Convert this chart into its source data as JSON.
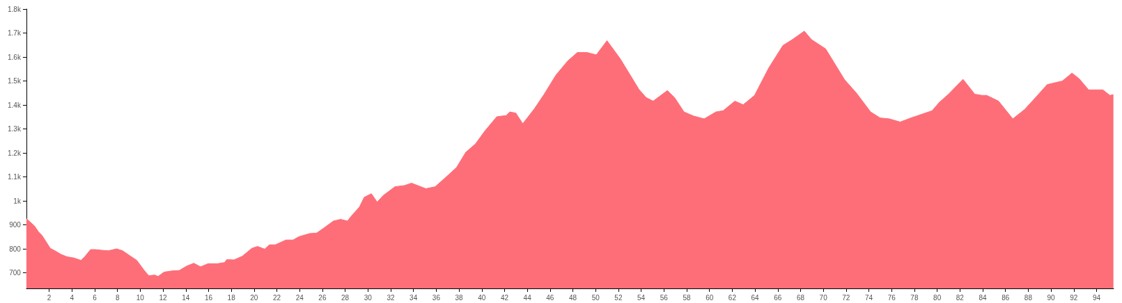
{
  "chart_data": {
    "type": "area",
    "color": "#fe6e78",
    "x": [
      0,
      0.23,
      0.7,
      1.06,
      1.37,
      2.1,
      2.5,
      3.04,
      3.56,
      4.18,
      4.8,
      5.12,
      5.64,
      6.05,
      6.68,
      7.2,
      7.93,
      8.45,
      9.07,
      9.7,
      10.3,
      10.74,
      11.26,
      11.57,
      12.09,
      12.8,
      13.44,
      14.07,
      14.7,
      15.3,
      15.94,
      16.77,
      17.4,
      17.6,
      18.23,
      18.96,
      19.8,
      20.3,
      20.93,
      21.35,
      21.87,
      22.8,
      23.43,
      23.95,
      24.9,
      25.5,
      26.1,
      26.97,
      27.6,
      28.2,
      28.53,
      29.26,
      29.67,
      30.3,
      30.81,
      31.33,
      32.37,
      33.2,
      33.83,
      35.08,
      35.9,
      36.74,
      37.78,
      38.6,
      39.45,
      40.28,
      41.32,
      42.15,
      42.47,
      42.99,
      43.6,
      44.65,
      45.48,
      46.52,
      47.56,
      48.4,
      49.23,
      50.06,
      51,
      52.14,
      52.97,
      53.8,
      54.43,
      55.05,
      56.3,
      56.93,
      57.76,
      58.6,
      59.53,
      60.57,
      61.2,
      62.23,
      62.96,
      63.96,
      65.2,
      66.45,
      67.29,
      68.33,
      68.95,
      70.2,
      71.87,
      72.9,
      74.15,
      74.99,
      75.8,
      76.75,
      77.7,
      79.56,
      80.19,
      81,
      82.27,
      83.3,
      83.93,
      84.35,
      85.39,
      86.64,
      87.68,
      88.72,
      89.66,
      91,
      91.84,
      92.46,
      93.3,
      94.55,
      95.17,
      95.48
    ],
    "values": [
      926,
      916,
      896,
      871,
      856,
      802,
      792,
      777,
      767,
      762,
      752,
      767,
      797,
      797,
      794,
      792,
      800,
      792,
      772,
      752,
      713,
      688,
      691,
      685,
      703,
      708,
      710,
      728,
      740,
      725,
      738,
      738,
      743,
      755,
      754,
      769,
      802,
      810,
      799,
      817,
      817,
      837,
      837,
      851,
      864,
      866,
      886,
      916,
      923,
      916,
      936,
      975,
      1015,
      1030,
      995,
      1022,
      1059,
      1064,
      1074,
      1051,
      1059,
      1094,
      1139,
      1203,
      1238,
      1292,
      1351,
      1356,
      1371,
      1366,
      1322,
      1386,
      1445,
      1525,
      1584,
      1619,
      1619,
      1609,
      1668,
      1594,
      1530,
      1465,
      1431,
      1416,
      1460,
      1431,
      1371,
      1354,
      1342,
      1371,
      1376,
      1416,
      1401,
      1440,
      1554,
      1648,
      1673,
      1708,
      1673,
      1634,
      1505,
      1450,
      1371,
      1346,
      1342,
      1329,
      1346,
      1376,
      1411,
      1445,
      1507,
      1445,
      1440,
      1440,
      1416,
      1342,
      1381,
      1435,
      1485,
      1500,
      1533,
      1510,
      1463,
      1463,
      1440,
      1443
    ],
    "xlim": [
      0,
      95.5
    ],
    "xticks": [
      2,
      4,
      6,
      8,
      10,
      12,
      14,
      16,
      18,
      20,
      22,
      24,
      26,
      28,
      30,
      32,
      34,
      36,
      38,
      40,
      42,
      44,
      46,
      48,
      50,
      52,
      54,
      56,
      58,
      60,
      62,
      64,
      66,
      68,
      70,
      72,
      74,
      76,
      78,
      80,
      82,
      84,
      86,
      88,
      90,
      92,
      94
    ],
    "ylim": [
      635,
      1800
    ],
    "yticks": [
      700,
      800,
      900,
      {
        "value": 1000,
        "label": "1k"
      },
      {
        "value": 1100,
        "label": "1.1k"
      },
      {
        "value": 1200,
        "label": "1.2k"
      },
      {
        "value": 1300,
        "label": "1.3k"
      },
      {
        "value": 1400,
        "label": "1.4k"
      },
      {
        "value": 1500,
        "label": "1.5k"
      },
      {
        "value": 1600,
        "label": "1.6k"
      },
      {
        "value": 1700,
        "label": "1.7k"
      },
      {
        "value": 1800,
        "label": "1.8k"
      }
    ],
    "grid": false
  }
}
